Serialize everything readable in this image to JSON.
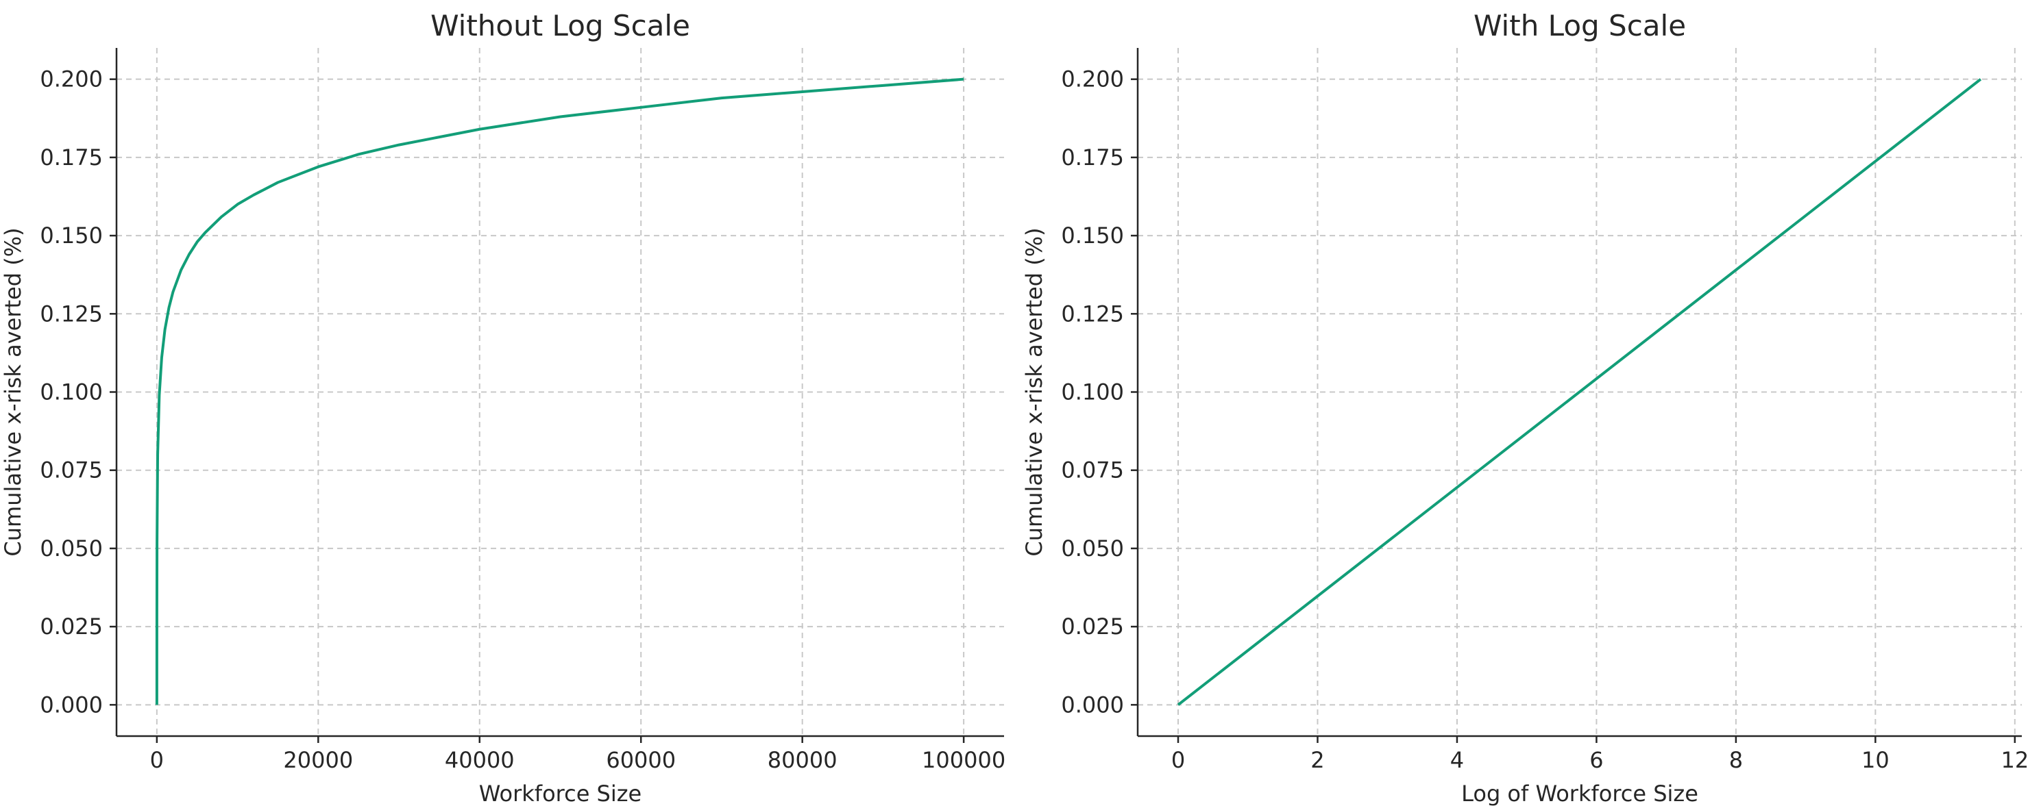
{
  "chart_data": [
    {
      "type": "line",
      "title": "Without Log Scale",
      "xlabel": "Workforce Size",
      "ylabel": "Cumulative x-risk averted (%)",
      "xlim": [
        -5000,
        105000
      ],
      "ylim": [
        -0.01,
        0.21
      ],
      "xticks": [
        0,
        20000,
        40000,
        60000,
        80000,
        100000
      ],
      "xtick_labels": [
        "0",
        "20000",
        "40000",
        "60000",
        "80000",
        "100000"
      ],
      "yticks": [
        0.0,
        0.025,
        0.05,
        0.075,
        0.1,
        0.125,
        0.15,
        0.175,
        0.2
      ],
      "ytick_labels": [
        "0.000",
        "0.025",
        "0.050",
        "0.075",
        "0.100",
        "0.125",
        "0.150",
        "0.175",
        "0.200"
      ],
      "grid": true,
      "color": "#129e78",
      "series": [
        {
          "x": [
            1,
            5,
            20,
            100,
            300,
            600,
            1000,
            1500,
            2000,
            3000,
            4000,
            5000,
            6000,
            8000,
            10000,
            12000,
            15000,
            20000,
            25000,
            30000,
            40000,
            50000,
            60000,
            70000,
            80000,
            90000,
            100000
          ],
          "y": [
            0.0,
            0.028,
            0.052,
            0.08,
            0.099,
            0.111,
            0.12,
            0.127,
            0.132,
            0.139,
            0.144,
            0.148,
            0.151,
            0.156,
            0.16,
            0.163,
            0.167,
            0.172,
            0.176,
            0.179,
            0.184,
            0.188,
            0.191,
            0.194,
            0.196,
            0.198,
            0.2
          ]
        }
      ]
    },
    {
      "type": "line",
      "title": "With Log Scale",
      "xlabel": "Log of Workforce Size",
      "ylabel": "Cumulative x-risk averted (%)",
      "xlim": [
        -0.58,
        12.1
      ],
      "ylim": [
        -0.01,
        0.21
      ],
      "xticks": [
        0,
        2,
        4,
        6,
        8,
        10,
        12
      ],
      "xtick_labels": [
        "0",
        "2",
        "4",
        "6",
        "8",
        "10",
        "12"
      ],
      "yticks": [
        0.0,
        0.025,
        0.05,
        0.075,
        0.1,
        0.125,
        0.15,
        0.175,
        0.2
      ],
      "ytick_labels": [
        "0.000",
        "0.025",
        "0.050",
        "0.075",
        "0.100",
        "0.125",
        "0.150",
        "0.175",
        "0.200"
      ],
      "grid": true,
      "color": "#129e78",
      "series": [
        {
          "x": [
            0,
            11.51
          ],
          "y": [
            0.0,
            0.2
          ]
        }
      ]
    }
  ]
}
